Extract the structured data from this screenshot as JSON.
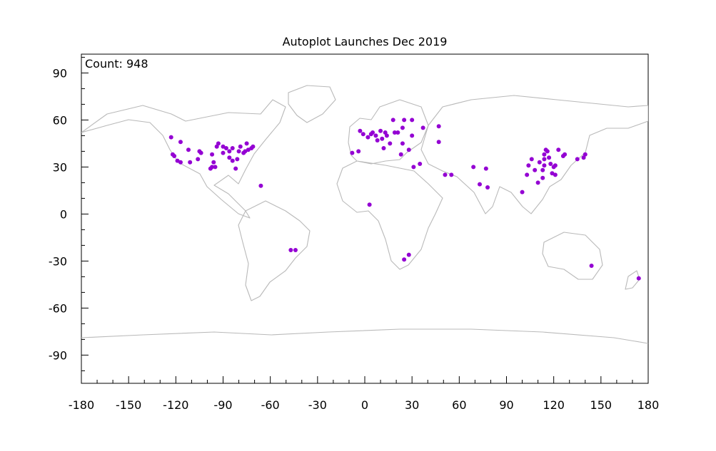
{
  "chart_data": {
    "type": "scatter",
    "title": "Autoplot Launches Dec 2019",
    "annotation": "Count: 948",
    "xlabel": "",
    "ylabel": "",
    "xlim": [
      -180,
      180
    ],
    "ylim": [
      -108,
      102
    ],
    "xticks": [
      -180,
      -150,
      -120,
      -90,
      -60,
      -30,
      0,
      30,
      60,
      90,
      120,
      150,
      180
    ],
    "yticks": [
      90,
      60,
      30,
      0,
      -30,
      -60,
      -90
    ],
    "grid": false,
    "point_color": "#9400d3",
    "background_map": "world coastlines and borders",
    "map_color": "#b9b9b9",
    "points": [
      {
        "lon": -123,
        "lat": 49
      },
      {
        "lon": -122,
        "lat": 38
      },
      {
        "lon": -121,
        "lat": 37
      },
      {
        "lon": -119,
        "lat": 34
      },
      {
        "lon": -117,
        "lat": 33
      },
      {
        "lon": -117,
        "lat": 46
      },
      {
        "lon": -112,
        "lat": 41
      },
      {
        "lon": -111,
        "lat": 33
      },
      {
        "lon": -105,
        "lat": 40
      },
      {
        "lon": -104,
        "lat": 39
      },
      {
        "lon": -106,
        "lat": 35
      },
      {
        "lon": -97,
        "lat": 38
      },
      {
        "lon": -96,
        "lat": 33
      },
      {
        "lon": -97,
        "lat": 30
      },
      {
        "lon": -95,
        "lat": 30
      },
      {
        "lon": -98,
        "lat": 29
      },
      {
        "lon": -94,
        "lat": 43
      },
      {
        "lon": -93,
        "lat": 45
      },
      {
        "lon": -90,
        "lat": 43
      },
      {
        "lon": -88,
        "lat": 42
      },
      {
        "lon": -90,
        "lat": 39
      },
      {
        "lon": -86,
        "lat": 40
      },
      {
        "lon": -84,
        "lat": 42
      },
      {
        "lon": -86,
        "lat": 36
      },
      {
        "lon": -84,
        "lat": 34
      },
      {
        "lon": -82,
        "lat": 29
      },
      {
        "lon": -81,
        "lat": 35
      },
      {
        "lon": -80,
        "lat": 40
      },
      {
        "lon": -79,
        "lat": 43
      },
      {
        "lon": -77,
        "lat": 39
      },
      {
        "lon": -76,
        "lat": 40
      },
      {
        "lon": -75,
        "lat": 45
      },
      {
        "lon": -74,
        "lat": 41
      },
      {
        "lon": -72,
        "lat": 42
      },
      {
        "lon": -71,
        "lat": 43
      },
      {
        "lon": -66,
        "lat": 18
      },
      {
        "lon": -47,
        "lat": -23
      },
      {
        "lon": -44,
        "lat": -23
      },
      {
        "lon": -8,
        "lat": 39
      },
      {
        "lon": -4,
        "lat": 40
      },
      {
        "lon": -3,
        "lat": 53
      },
      {
        "lon": -1,
        "lat": 51
      },
      {
        "lon": 2,
        "lat": 49
      },
      {
        "lon": 4,
        "lat": 51
      },
      {
        "lon": 5,
        "lat": 52
      },
      {
        "lon": 7,
        "lat": 50
      },
      {
        "lon": 8,
        "lat": 47
      },
      {
        "lon": 10,
        "lat": 53
      },
      {
        "lon": 11,
        "lat": 48
      },
      {
        "lon": 12,
        "lat": 42
      },
      {
        "lon": 13,
        "lat": 52
      },
      {
        "lon": 14,
        "lat": 50
      },
      {
        "lon": 16,
        "lat": 45
      },
      {
        "lon": 18,
        "lat": 60
      },
      {
        "lon": 19,
        "lat": 52
      },
      {
        "lon": 21,
        "lat": 52
      },
      {
        "lon": 23,
        "lat": 38
      },
      {
        "lon": 24,
        "lat": 45
      },
      {
        "lon": 25,
        "lat": 60
      },
      {
        "lon": 24,
        "lat": 55
      },
      {
        "lon": 28,
        "lat": 41
      },
      {
        "lon": 30,
        "lat": 50
      },
      {
        "lon": 30,
        "lat": 60
      },
      {
        "lon": 31,
        "lat": 30
      },
      {
        "lon": 35,
        "lat": 32
      },
      {
        "lon": 37,
        "lat": 55
      },
      {
        "lon": 3,
        "lat": 6
      },
      {
        "lon": 25,
        "lat": -29
      },
      {
        "lon": 28,
        "lat": -26
      },
      {
        "lon": 47,
        "lat": 56
      },
      {
        "lon": 47,
        "lat": 46
      },
      {
        "lon": 51,
        "lat": 25
      },
      {
        "lon": 55,
        "lat": 25
      },
      {
        "lon": 69,
        "lat": 30
      },
      {
        "lon": 73,
        "lat": 19
      },
      {
        "lon": 77,
        "lat": 29
      },
      {
        "lon": 78,
        "lat": 17
      },
      {
        "lon": 100,
        "lat": 14
      },
      {
        "lon": 103,
        "lat": 25
      },
      {
        "lon": 104,
        "lat": 31
      },
      {
        "lon": 106,
        "lat": 35
      },
      {
        "lon": 108,
        "lat": 28
      },
      {
        "lon": 110,
        "lat": 20
      },
      {
        "lon": 111,
        "lat": 33
      },
      {
        "lon": 113,
        "lat": 28
      },
      {
        "lon": 113,
        "lat": 23
      },
      {
        "lon": 114,
        "lat": 31
      },
      {
        "lon": 114,
        "lat": 35
      },
      {
        "lon": 114,
        "lat": 38
      },
      {
        "lon": 115,
        "lat": 41
      },
      {
        "lon": 116,
        "lat": 40
      },
      {
        "lon": 117,
        "lat": 36
      },
      {
        "lon": 118,
        "lat": 32
      },
      {
        "lon": 119,
        "lat": 26
      },
      {
        "lon": 120,
        "lat": 30
      },
      {
        "lon": 121,
        "lat": 31
      },
      {
        "lon": 121,
        "lat": 25
      },
      {
        "lon": 123,
        "lat": 41
      },
      {
        "lon": 126,
        "lat": 37
      },
      {
        "lon": 127,
        "lat": 38
      },
      {
        "lon": 135,
        "lat": 35
      },
      {
        "lon": 139,
        "lat": 36
      },
      {
        "lon": 140,
        "lat": 38
      },
      {
        "lon": 144,
        "lat": -33
      },
      {
        "lon": 174,
        "lat": -41
      }
    ]
  }
}
